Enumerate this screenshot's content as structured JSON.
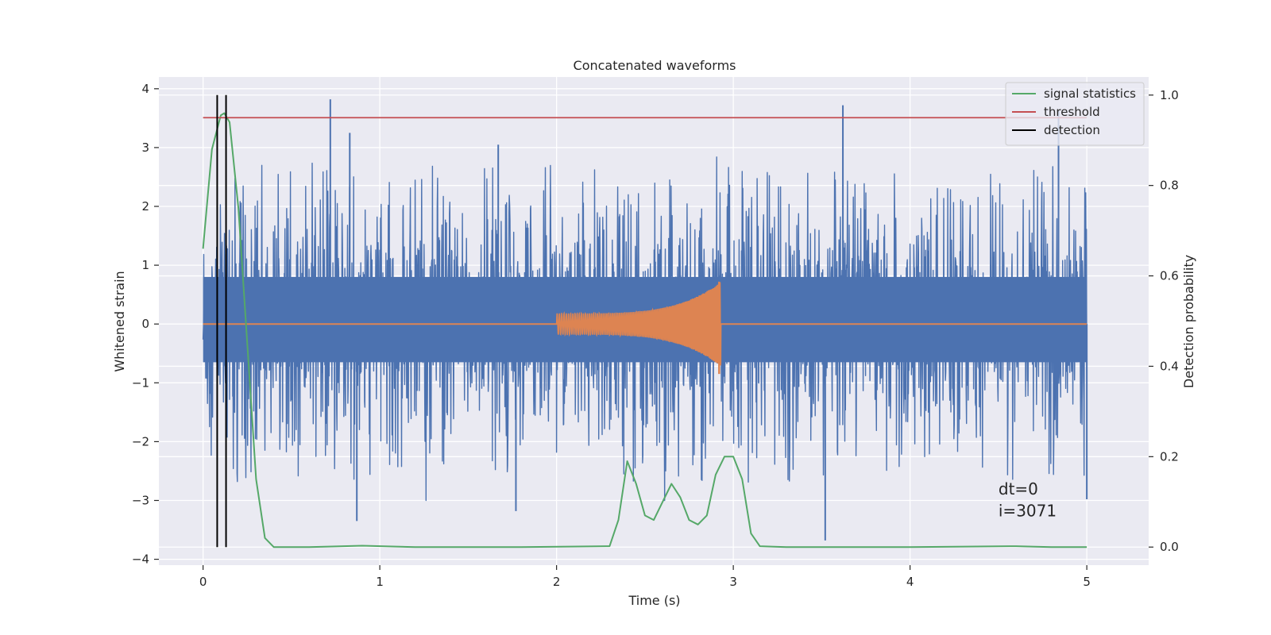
{
  "chart_data": {
    "type": "line",
    "title": "Concatenated waveforms",
    "xlabel": "Time (s)",
    "ylabel": "Whitened strain",
    "y2label": "Detection probability",
    "xlim": [
      -0.25,
      5.35
    ],
    "ylim": [
      -4.1,
      4.2
    ],
    "y2lim": [
      -0.04,
      1.04
    ],
    "x_ticks": [
      0,
      1,
      2,
      3,
      4,
      5
    ],
    "y_ticks": [
      -4,
      -3,
      -2,
      -1,
      0,
      1,
      2,
      3,
      4
    ],
    "y2_ticks": [
      0.0,
      0.2,
      0.4,
      0.6,
      0.8,
      1.0
    ],
    "x_tick_labels": [
      "0",
      "1",
      "2",
      "3",
      "4",
      "5"
    ],
    "y_tick_labels": [
      "−4",
      "−3",
      "−2",
      "−1",
      "0",
      "1",
      "2",
      "3",
      "4"
    ],
    "y2_tick_labels": [
      "0.0",
      "0.2",
      "0.4",
      "0.6",
      "0.8",
      "1.0"
    ],
    "grid": true,
    "legend_position": "top-right",
    "series": [
      {
        "name": "",
        "kind": "noise",
        "color": "#4c72b0",
        "axis": "left",
        "x_range": [
          0,
          5
        ],
        "amplitude_envelope": 2.3,
        "spikes": [
          {
            "x": 0.72,
            "y": 3.82
          },
          {
            "x": 0.83,
            "y": 3.25
          },
          {
            "x": 1.67,
            "y": 3.05
          },
          {
            "x": 3.62,
            "y": 3.72
          },
          {
            "x": 4.84,
            "y": 3.62
          },
          {
            "x": 3.52,
            "y": -3.68
          },
          {
            "x": 0.87,
            "y": -3.35
          },
          {
            "x": 1.77,
            "y": -3.18
          },
          {
            "x": 5.0,
            "y": -2.98
          }
        ]
      },
      {
        "name": "",
        "kind": "chirp",
        "color": "#dd8452",
        "axis": "left",
        "x_range": [
          2.0,
          2.93
        ],
        "amplitude_start": 0.18,
        "amplitude_peak": 0.72,
        "amplitude_min_end": -0.85
      },
      {
        "name": "signal statistics",
        "kind": "curve",
        "color": "#55a868",
        "axis": "right",
        "x": [
          0.0,
          0.05,
          0.1,
          0.12,
          0.15,
          0.2,
          0.25,
          0.3,
          0.35,
          0.4,
          0.6,
          0.9,
          1.2,
          1.8,
          2.3,
          2.35,
          2.4,
          2.45,
          2.5,
          2.55,
          2.6,
          2.65,
          2.7,
          2.75,
          2.8,
          2.85,
          2.9,
          2.95,
          3.0,
          3.05,
          3.1,
          3.15,
          3.3,
          4.0,
          4.6,
          4.8,
          5.0
        ],
        "y": [
          0.66,
          0.88,
          0.955,
          0.96,
          0.94,
          0.75,
          0.45,
          0.15,
          0.02,
          0.0,
          0.0,
          0.003,
          0.0,
          0.0,
          0.002,
          0.06,
          0.19,
          0.14,
          0.07,
          0.06,
          0.1,
          0.14,
          0.11,
          0.06,
          0.05,
          0.07,
          0.16,
          0.2,
          0.2,
          0.15,
          0.03,
          0.002,
          0.0,
          0.0,
          0.002,
          0.0,
          0.0
        ]
      },
      {
        "name": "threshold",
        "kind": "hline",
        "color": "#c44e52",
        "axis": "right",
        "x_range": [
          0,
          5
        ],
        "y": 0.95
      },
      {
        "name": "detection",
        "kind": "vlines",
        "color": "#000000",
        "axis": "right",
        "x": [
          0.08,
          0.13
        ],
        "y_range": [
          0.0,
          1.0
        ]
      }
    ],
    "annotations": [
      {
        "text": "dt=0",
        "x": 4.5,
        "y": -2.9
      },
      {
        "text": "i=3071",
        "x": 4.5,
        "y": -3.27
      }
    ]
  }
}
